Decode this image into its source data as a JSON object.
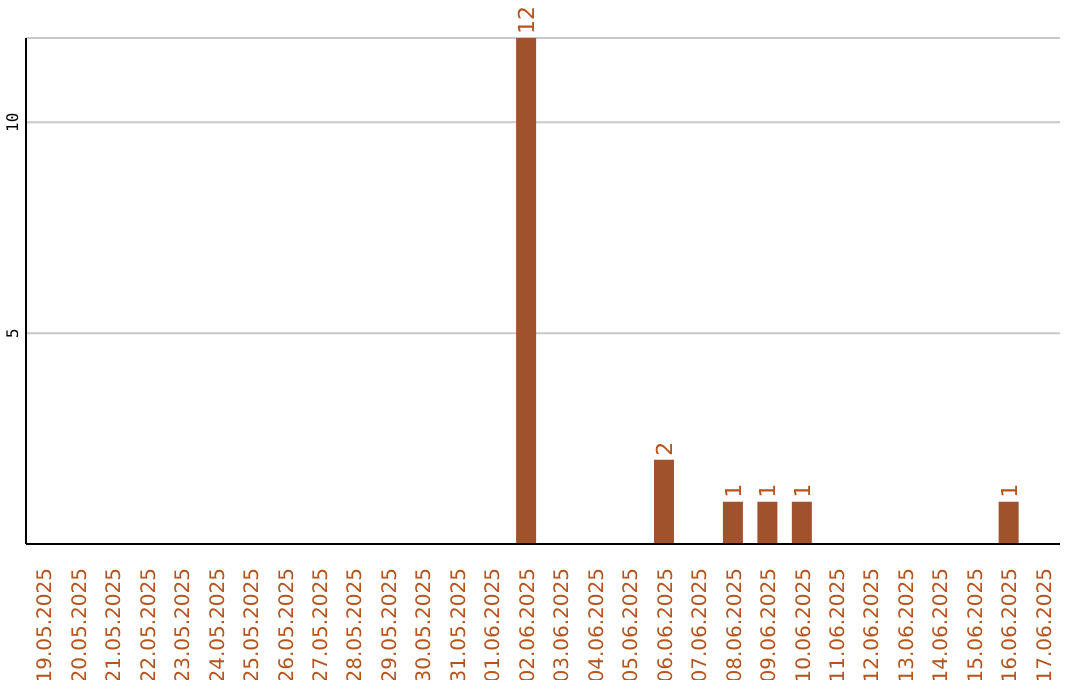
{
  "chart_data": {
    "type": "bar",
    "categories": [
      "19.05.2025",
      "20.05.2025",
      "21.05.2025",
      "22.05.2025",
      "23.05.2025",
      "24.05.2025",
      "25.05.2025",
      "26.05.2025",
      "27.05.2025",
      "28.05.2025",
      "29.05.2025",
      "30.05.2025",
      "31.05.2025",
      "01.06.2025",
      "02.06.2025",
      "03.06.2025",
      "04.06.2025",
      "05.06.2025",
      "06.06.2025",
      "07.06.2025",
      "08.06.2025",
      "09.06.2025",
      "10.06.2025",
      "11.06.2025",
      "12.06.2025",
      "13.06.2025",
      "14.06.2025",
      "15.06.2025",
      "16.06.2025",
      "17.06.2025"
    ],
    "values": [
      0,
      0,
      0,
      0,
      0,
      0,
      0,
      0,
      0,
      0,
      0,
      0,
      0,
      0,
      12,
      0,
      0,
      0,
      2,
      0,
      1,
      1,
      1,
      0,
      0,
      0,
      0,
      0,
      1,
      0
    ],
    "value_labels": [
      null,
      null,
      null,
      null,
      null,
      null,
      null,
      null,
      null,
      null,
      null,
      null,
      null,
      null,
      "12",
      null,
      null,
      null,
      "2",
      null,
      "1",
      "1",
      "1",
      null,
      null,
      null,
      null,
      null,
      "1",
      null
    ],
    "color": "#a0522d",
    "ylim": [
      0,
      12
    ],
    "yticks": [
      5,
      10
    ],
    "grid": "y"
  }
}
